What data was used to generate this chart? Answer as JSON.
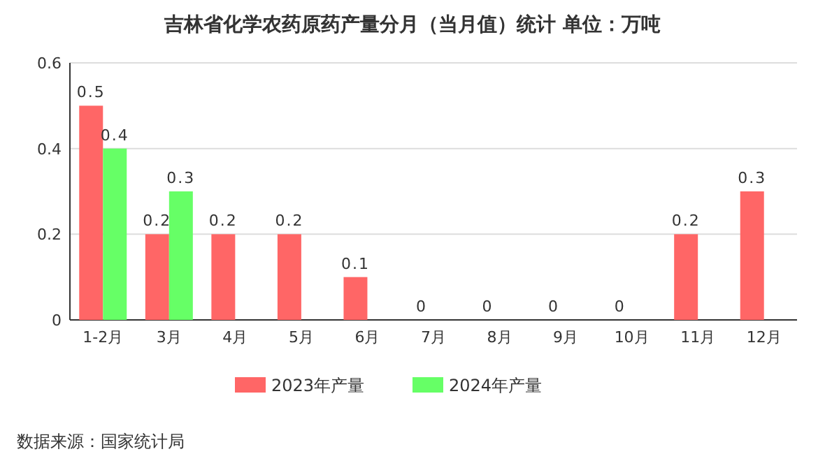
{
  "chart_data": {
    "type": "bar",
    "title": "吉林省化学农药原药产量分月（当月值）统计 单位：万吨",
    "categories": [
      "1-2月",
      "3月",
      "4月",
      "5月",
      "6月",
      "7月",
      "8月",
      "9月",
      "10月",
      "11月",
      "12月"
    ],
    "series": [
      {
        "name": "2023年产量",
        "color": "#ff6666",
        "values": [
          0.5,
          0.2,
          0.2,
          0.2,
          0.1,
          0,
          0,
          0,
          0,
          0.2,
          0.3
        ]
      },
      {
        "name": "2024年产量",
        "color": "#66ff66",
        "values": [
          0.4,
          0.3,
          null,
          null,
          null,
          null,
          null,
          null,
          null,
          null,
          null
        ]
      }
    ],
    "ylim": [
      0,
      0.6
    ],
    "yticks": [
      0,
      0.2,
      0.4,
      0.6
    ],
    "grid": "y",
    "legend": "bottom",
    "data_labels": true,
    "annotations": [
      "数据来源：国家统计局"
    ]
  }
}
